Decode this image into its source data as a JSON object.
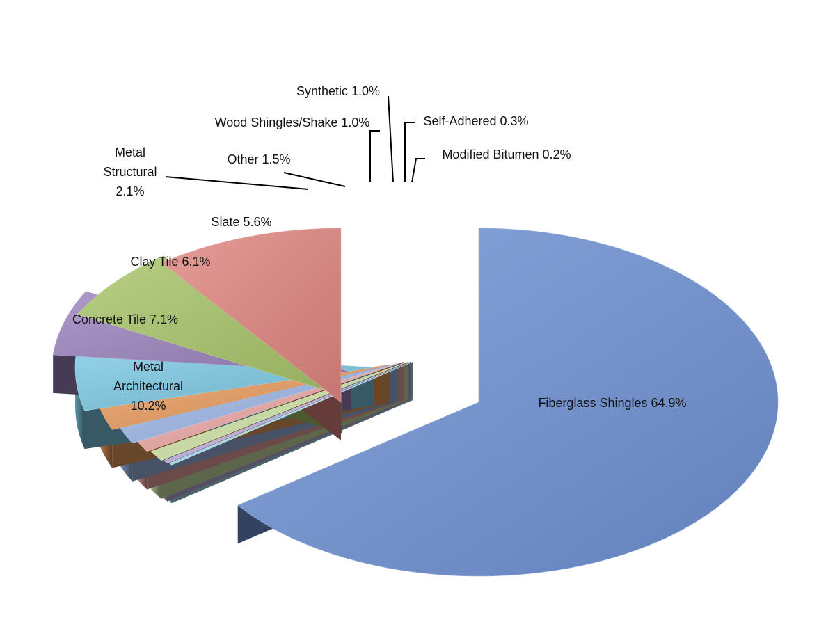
{
  "chart_data": {
    "type": "pie",
    "style": "3d-exploded",
    "slices": [
      {
        "name": "Fiberglass Shingles",
        "value": 64.9,
        "label": "Fiberglass Shingles 64.9%",
        "color": "#6f92d4"
      },
      {
        "name": "Metal Architectural",
        "value": 10.2,
        "label_lines": [
          "Metal",
          "Architectural",
          "10.2%"
        ],
        "color": "#e08680"
      },
      {
        "name": "Concrete Tile",
        "value": 7.1,
        "label": "Concrete Tile 7.1%",
        "color": "#a8c56a"
      },
      {
        "name": "Clay Tile",
        "value": 6.1,
        "label": "Clay Tile 6.1%",
        "color": "#9b84bd"
      },
      {
        "name": "Slate",
        "value": 5.6,
        "label": "Slate 5.6%",
        "color": "#7cc8e3"
      },
      {
        "name": "Metal Structural",
        "value": 2.1,
        "label_lines": [
          "Metal",
          "Structural",
          "2.1%"
        ],
        "color": "#e89b5e"
      },
      {
        "name": "Other",
        "value": 1.5,
        "label": "Other 1.5%",
        "color": "#9db6e6"
      },
      {
        "name": "Wood Shingles/Shake",
        "value": 1.0,
        "label": "Wood Shingles/Shake 1.0%",
        "color": "#eba7a4"
      },
      {
        "name": "Synthetic",
        "value": 1.0,
        "label": "Synthetic 1.0%",
        "color": "#cfe3a6"
      },
      {
        "name": "Self-Adhered",
        "value": 0.3,
        "label": "Self-Adhered 0.3%",
        "color": "#c0b0dc"
      },
      {
        "name": "Modified Bitumen",
        "value": 0.2,
        "label": "Modified Bitumen 0.2%",
        "color": "#a9dff0"
      }
    ]
  }
}
